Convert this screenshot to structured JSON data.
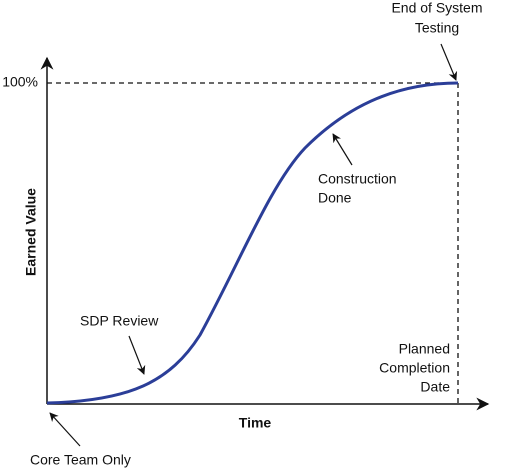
{
  "diagram": {
    "y_axis_label": "Earned Value",
    "x_axis_label": "Time",
    "top_mark": "100%",
    "annotations": {
      "end": [
        "End of System",
        "Testing"
      ],
      "construction": [
        "Construction",
        "Done"
      ],
      "sdp": [
        "SDP Review"
      ],
      "planned": [
        "Planned",
        "Completion",
        "Date"
      ],
      "start": [
        "Core Team Only"
      ]
    }
  }
}
